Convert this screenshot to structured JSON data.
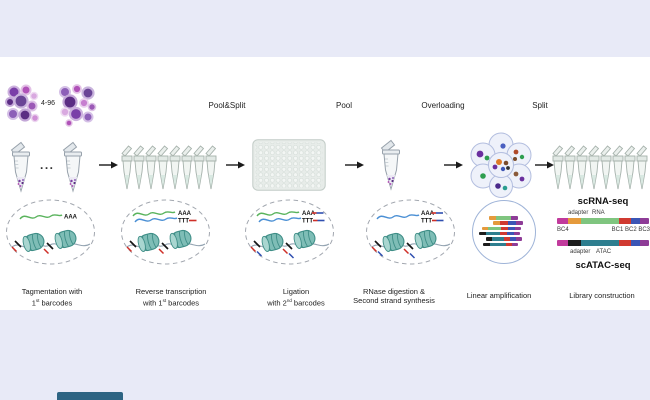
{
  "phases": [
    "Pool&Split",
    "Pool",
    "Overloading",
    "Split"
  ],
  "cell_input_range": "4-96",
  "ellipsis": "...",
  "strand_labels": {
    "polyA": "AAA",
    "polyT": "TTT"
  },
  "stages": [
    {
      "line1": "Tagmentation with",
      "l2pre": "",
      "l2num": "1",
      "l2ord": "st",
      "l2rest": " barcodes"
    },
    {
      "line1": "Reverse transcription",
      "l2pre": "with ",
      "l2num": "1",
      "l2ord": "st",
      "l2rest": " barcodes"
    },
    {
      "line1": "Ligation",
      "l2pre": "with ",
      "l2num": "2",
      "l2ord": "nd",
      "l2rest": " barcodes"
    },
    {
      "line1": "RNase digestion &",
      "line2": "Second strand synthesis"
    },
    {
      "line1": "Linear amplification"
    },
    {
      "line1": "Library construction"
    }
  ],
  "library": {
    "scrna_title": "scRNA-seq",
    "scatac_title": "scATAC-seq",
    "rna_top_labels": {
      "adapter": "adapter",
      "insert": "RNA"
    },
    "bc4": "BC4",
    "bc_right": "BC1 BC2 BC3",
    "atac_bottom_labels": {
      "adapter": "adapter",
      "insert": "ATAC"
    },
    "rna_segments": [
      {
        "name": "BC4",
        "color": "#c13a9c",
        "w": 11
      },
      {
        "name": "adapter",
        "color": "#e59a3c",
        "w": 13
      },
      {
        "name": "RNA",
        "color": "#7fc57f",
        "w": 38
      },
      {
        "name": "BC1",
        "color": "#d03a31",
        "w": 12
      },
      {
        "name": "BC2",
        "color": "#3b55b5",
        "w": 9
      },
      {
        "name": "BC3",
        "color": "#8e3c97",
        "w": 9
      }
    ],
    "atac_segments": [
      {
        "name": "BC4",
        "color": "#c13a9c",
        "w": 11
      },
      {
        "name": "adapter",
        "color": "#1c1c1c",
        "w": 13
      },
      {
        "name": "ATAC",
        "color": "#2e7e8f",
        "w": 38
      },
      {
        "name": "BC1",
        "color": "#d03a31",
        "w": 12
      },
      {
        "name": "BC2",
        "color": "#3b55b5",
        "w": 9
      },
      {
        "name": "BC3",
        "color": "#8e3c97",
        "w": 9
      }
    ]
  },
  "amplification": {
    "bars": [
      {
        "x": 16,
        "segments": [
          [
            "#e59a3c",
            7
          ],
          [
            "#7fc57f",
            15
          ],
          [
            "#8e3c97",
            7
          ]
        ]
      },
      {
        "x": 20,
        "segments": [
          [
            "#e59a3c",
            7
          ],
          [
            "#d03a31",
            8
          ],
          [
            "#3b55b5",
            8
          ],
          [
            "#8e3c97",
            7
          ]
        ]
      },
      {
        "x": 9,
        "segments": [
          [
            "#e59a3c",
            6
          ],
          [
            "#7fc57f",
            13
          ],
          [
            "#d03a31",
            7
          ],
          [
            "#3b55b5",
            7
          ],
          [
            "#8e3c97",
            6
          ]
        ]
      },
      {
        "x": 6,
        "segments": [
          [
            "#1c1c1c",
            7
          ],
          [
            "#2e7e8f",
            14
          ],
          [
            "#d03a31",
            7
          ],
          [
            "#3b55b5",
            7
          ],
          [
            "#8e3c97",
            6
          ]
        ]
      },
      {
        "x": 13,
        "segments": [
          [
            "#1c1c1c",
            6
          ],
          [
            "#2e7e8f",
            12
          ],
          [
            "#d03a31",
            6
          ],
          [
            "#3b55b5",
            6
          ],
          [
            "#8e3c97",
            6
          ]
        ]
      },
      {
        "x": 10,
        "segments": [
          [
            "#1c1c1c",
            7
          ],
          [
            "#2e7e8f",
            16
          ],
          [
            "#d03a31",
            6
          ],
          [
            "#8e3c97",
            6
          ]
        ]
      }
    ]
  },
  "palette": {
    "background": "#e8eaf7",
    "panel": "#ffffff",
    "nucleosome": "#7ebdb6",
    "nucleosome_stroke": "#3f8e87",
    "chromatin": "#93a3b1",
    "mrna_green": "#59b35c",
    "cdna_blue": "#4a8fd4",
    "barcode_red": "#cf2f28",
    "barcode_blue": "#2f4fb0",
    "droplet_stroke": "#b3bedf",
    "arrow": "#1a1a1a"
  }
}
